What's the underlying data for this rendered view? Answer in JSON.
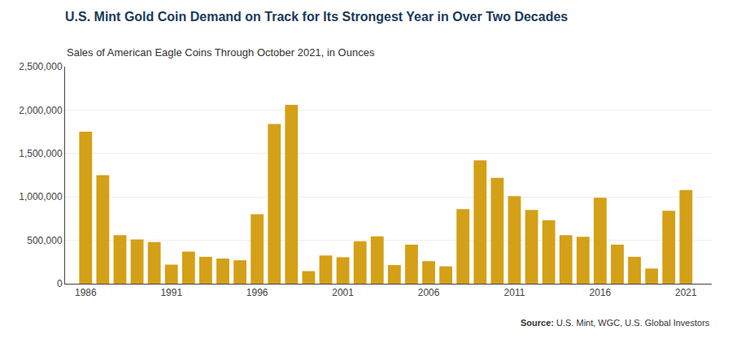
{
  "chart_data": {
    "type": "bar",
    "title": "U.S. Mint Gold Coin Demand on Track for Its Strongest Year in Over Two Decades",
    "subtitle": "Sales of American Eagle Coins Through October 2021, in Ounces",
    "annotations": [
      "Source:",
      " U.S. Mint, WGC, U.S. Global Investors"
    ],
    "x": [
      1986,
      1987,
      1988,
      1989,
      1990,
      1991,
      1992,
      1993,
      1994,
      1995,
      1996,
      1997,
      1998,
      1999,
      2000,
      2001,
      2002,
      2003,
      2004,
      2005,
      2006,
      2007,
      2008,
      2009,
      2010,
      2011,
      2012,
      2013,
      2014,
      2015,
      2016,
      2017,
      2018,
      2019,
      2020,
      2021
    ],
    "values": [
      1750000,
      1250000,
      560000,
      510000,
      480000,
      220000,
      370000,
      310000,
      290000,
      270000,
      800000,
      1840000,
      2060000,
      145000,
      325000,
      305000,
      490000,
      545000,
      215000,
      450000,
      260000,
      200000,
      860000,
      1420000,
      1220000,
      1010000,
      850000,
      730000,
      560000,
      540000,
      990000,
      450000,
      310000,
      175000,
      840000,
      1080000
    ],
    "color": "#d4a017",
    "xlim": [
      1984.8,
      2022.5
    ],
    "xticks": [
      1986,
      1991,
      1996,
      2001,
      2006,
      2011,
      2016,
      2021
    ],
    "ylim": [
      0,
      2500000
    ],
    "yticks": [
      0,
      {
        "value": 500000,
        "label": "500,000"
      },
      {
        "value": 1000000,
        "label": "1,000,000"
      },
      {
        "value": 1500000,
        "label": "1,500,000"
      },
      {
        "value": 2000000,
        "label": "2,000,000"
      },
      {
        "value": 2500000,
        "label": "2,500,000"
      }
    ],
    "grid": true
  }
}
